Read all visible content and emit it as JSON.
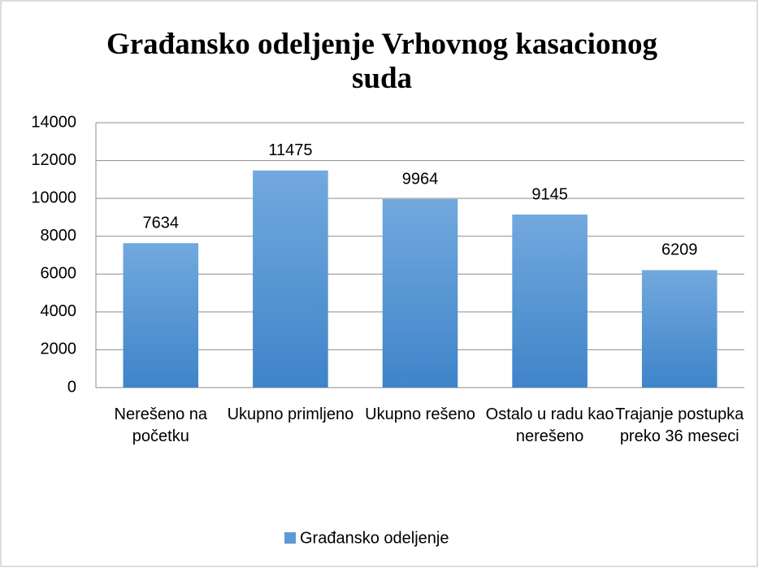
{
  "chart_data": {
    "type": "bar",
    "title": "Građansko odeljenje Vrhovnog kasacionog suda",
    "categories": [
      "Nerešeno na početku",
      "Ukupno primljeno",
      "Ukupno rešeno",
      "Ostalo u radu kao nerešeno",
      "Trajanje postupka preko 36 meseci"
    ],
    "series": [
      {
        "name": "Građansko odeljenje",
        "color": "#5b9bd5",
        "values": [
          7634,
          11475,
          9964,
          9145,
          6209
        ]
      }
    ],
    "ylim": [
      0,
      14000
    ],
    "yticks": [
      0,
      2000,
      4000,
      6000,
      8000,
      10000,
      12000,
      14000
    ],
    "grid": true,
    "legend": "bottom",
    "data_labels": true
  }
}
